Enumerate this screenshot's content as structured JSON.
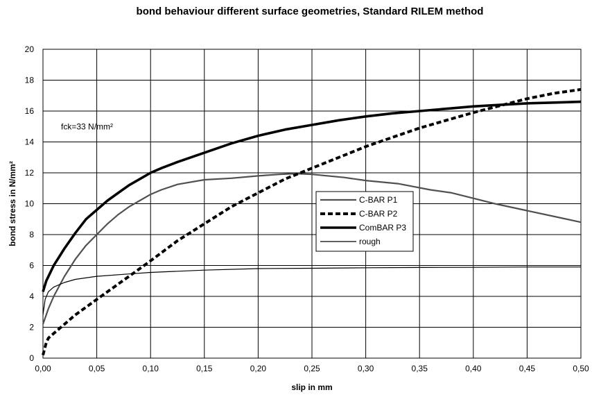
{
  "chart_data": {
    "type": "line",
    "title": "bond behaviour different surface geometries, Standard RILEM method",
    "xlabel": "slip in mm",
    "ylabel": "bond stress in N/mm²",
    "xlim": [
      0,
      0.5
    ],
    "ylim": [
      0,
      20
    ],
    "x_ticks": [
      "0,00",
      "0,05",
      "0,10",
      "0,15",
      "0,20",
      "0,25",
      "0,30",
      "0,35",
      "0,40",
      "0,45",
      "0,50"
    ],
    "y_ticks": [
      "0",
      "2",
      "4",
      "6",
      "8",
      "10",
      "12",
      "14",
      "16",
      "18",
      "20"
    ],
    "grid": true,
    "legend_position": "center-right",
    "annotation": "fck=33 N/mm²",
    "series": [
      {
        "name": "C-BAR P1",
        "color": "#505050",
        "style": "solid-medium",
        "points": [
          [
            0,
            2.2
          ],
          [
            0.005,
            3.2
          ],
          [
            0.01,
            4.0
          ],
          [
            0.02,
            5.3
          ],
          [
            0.03,
            6.4
          ],
          [
            0.04,
            7.3
          ],
          [
            0.05,
            8.0
          ],
          [
            0.06,
            8.7
          ],
          [
            0.07,
            9.3
          ],
          [
            0.08,
            9.8
          ],
          [
            0.09,
            10.2
          ],
          [
            0.1,
            10.6
          ],
          [
            0.11,
            10.9
          ],
          [
            0.125,
            11.25
          ],
          [
            0.15,
            11.55
          ],
          [
            0.175,
            11.65
          ],
          [
            0.2,
            11.8
          ],
          [
            0.22,
            11.9
          ],
          [
            0.235,
            11.95
          ],
          [
            0.25,
            11.9
          ],
          [
            0.28,
            11.7
          ],
          [
            0.3,
            11.5
          ],
          [
            0.33,
            11.3
          ],
          [
            0.36,
            10.9
          ],
          [
            0.38,
            10.7
          ],
          [
            0.4,
            10.35
          ],
          [
            0.42,
            10.0
          ],
          [
            0.45,
            9.55
          ],
          [
            0.48,
            9.1
          ],
          [
            0.5,
            8.8
          ]
        ]
      },
      {
        "name": "C-BAR P2",
        "color": "#000000",
        "style": "dashed-thick",
        "points": [
          [
            0,
            0.2
          ],
          [
            0.003,
            1.0
          ],
          [
            0.005,
            1.3
          ],
          [
            0.01,
            1.6
          ],
          [
            0.02,
            2.2
          ],
          [
            0.03,
            2.8
          ],
          [
            0.04,
            3.3
          ],
          [
            0.05,
            3.8
          ],
          [
            0.06,
            4.3
          ],
          [
            0.07,
            4.8
          ],
          [
            0.08,
            5.3
          ],
          [
            0.09,
            5.8
          ],
          [
            0.1,
            6.3
          ],
          [
            0.125,
            7.6
          ],
          [
            0.15,
            8.7
          ],
          [
            0.175,
            9.8
          ],
          [
            0.2,
            10.7
          ],
          [
            0.225,
            11.6
          ],
          [
            0.25,
            12.3
          ],
          [
            0.275,
            13.0
          ],
          [
            0.3,
            13.7
          ],
          [
            0.325,
            14.3
          ],
          [
            0.35,
            14.9
          ],
          [
            0.375,
            15.4
          ],
          [
            0.4,
            15.9
          ],
          [
            0.425,
            16.35
          ],
          [
            0.45,
            16.8
          ],
          [
            0.475,
            17.15
          ],
          [
            0.5,
            17.4
          ]
        ]
      },
      {
        "name": "ComBAR P3",
        "color": "#000000",
        "style": "solid-thick",
        "points": [
          [
            0,
            4.3
          ],
          [
            0.003,
            5.0
          ],
          [
            0.01,
            6.0
          ],
          [
            0.02,
            7.1
          ],
          [
            0.03,
            8.1
          ],
          [
            0.04,
            9.0
          ],
          [
            0.05,
            9.6
          ],
          [
            0.06,
            10.2
          ],
          [
            0.07,
            10.7
          ],
          [
            0.08,
            11.2
          ],
          [
            0.09,
            11.6
          ],
          [
            0.1,
            12.0
          ],
          [
            0.11,
            12.3
          ],
          [
            0.125,
            12.7
          ],
          [
            0.15,
            13.3
          ],
          [
            0.175,
            13.9
          ],
          [
            0.2,
            14.4
          ],
          [
            0.225,
            14.8
          ],
          [
            0.25,
            15.1
          ],
          [
            0.275,
            15.4
          ],
          [
            0.3,
            15.65
          ],
          [
            0.325,
            15.85
          ],
          [
            0.35,
            16.0
          ],
          [
            0.375,
            16.15
          ],
          [
            0.4,
            16.3
          ],
          [
            0.425,
            16.4
          ],
          [
            0.45,
            16.5
          ],
          [
            0.475,
            16.55
          ],
          [
            0.5,
            16.6
          ]
        ]
      },
      {
        "name": "rough",
        "color": "#000000",
        "style": "solid-thin",
        "points": [
          [
            0,
            2.8
          ],
          [
            0.002,
            3.8
          ],
          [
            0.005,
            4.3
          ],
          [
            0.01,
            4.6
          ],
          [
            0.02,
            4.9
          ],
          [
            0.03,
            5.1
          ],
          [
            0.05,
            5.3
          ],
          [
            0.08,
            5.45
          ],
          [
            0.1,
            5.55
          ],
          [
            0.15,
            5.7
          ],
          [
            0.2,
            5.8
          ],
          [
            0.25,
            5.82
          ],
          [
            0.3,
            5.85
          ],
          [
            0.35,
            5.87
          ],
          [
            0.4,
            5.88
          ],
          [
            0.45,
            5.9
          ],
          [
            0.5,
            5.9
          ]
        ]
      }
    ]
  }
}
